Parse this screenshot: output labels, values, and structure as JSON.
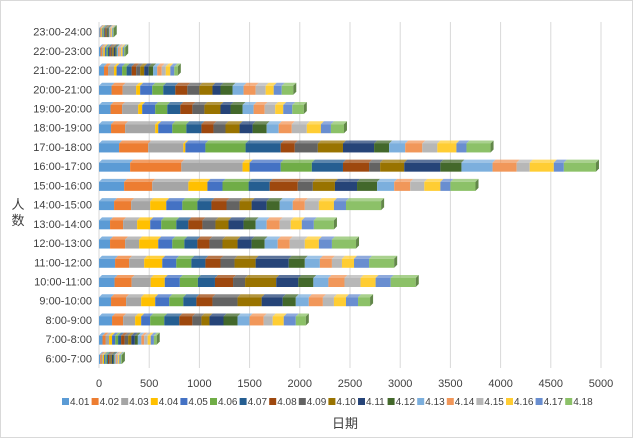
{
  "chart_data": {
    "type": "bar",
    "orientation": "horizontal",
    "stacked": true,
    "xlabel": "日期",
    "ylabel": "人数",
    "xlim": [
      0,
      5000
    ],
    "xticks": [
      0,
      500,
      1000,
      1500,
      2000,
      2500,
      3000,
      3500,
      4000,
      4500,
      5000
    ],
    "grid": "vertical",
    "legend_position": "bottom",
    "categories": [
      "6:00-7:00",
      "7:00-8:00",
      "8:00-9:00",
      "9:00-10:00",
      "10:00-11:00",
      "11:00-12:00",
      "12:00-13:00",
      "13:00-14:00",
      "14:00-15:00",
      "15:00-16:00",
      "16:00-17:00",
      "17:00-18:00",
      "18:00-19:00",
      "19:00-20:00",
      "20:00-21:00",
      "21:00-22:00",
      "22:00-23:00",
      "23:00-24:00"
    ],
    "series": [
      {
        "name": "4.01",
        "color": "#5b9bd5",
        "values": [
          13,
          35,
          130,
          120,
          155,
          160,
          110,
          110,
          150,
          250,
          310,
          200,
          120,
          115,
          125,
          50,
          15,
          8
        ]
      },
      {
        "name": "4.02",
        "color": "#ed7d31",
        "values": [
          12,
          30,
          110,
          150,
          170,
          140,
          150,
          130,
          170,
          280,
          510,
          290,
          140,
          115,
          110,
          40,
          14,
          8
        ]
      },
      {
        "name": "4.03",
        "color": "#a5a5a5",
        "values": [
          13,
          35,
          120,
          150,
          190,
          150,
          140,
          140,
          190,
          360,
          610,
          350,
          300,
          160,
          135,
          60,
          15,
          8
        ]
      },
      {
        "name": "4.04",
        "color": "#ffc000",
        "values": [
          12,
          30,
          60,
          140,
          140,
          180,
          190,
          130,
          160,
          190,
          70,
          20,
          30,
          40,
          40,
          25,
          14,
          9
        ]
      },
      {
        "name": "4.05",
        "color": "#4472c4",
        "values": [
          13,
          32,
          90,
          140,
          150,
          140,
          140,
          110,
          160,
          150,
          310,
          200,
          140,
          130,
          120,
          55,
          16,
          9
        ]
      },
      {
        "name": "4.06",
        "color": "#70ad47",
        "values": [
          14,
          28,
          140,
          140,
          180,
          150,
          120,
          150,
          150,
          260,
          310,
          400,
          140,
          120,
          110,
          45,
          15,
          8
        ]
      },
      {
        "name": "4.07",
        "color": "#255e91",
        "values": [
          12,
          30,
          150,
          130,
          170,
          140,
          130,
          120,
          140,
          210,
          310,
          350,
          150,
          130,
          120,
          50,
          15,
          8
        ]
      },
      {
        "name": "4.08",
        "color": "#9e480e",
        "values": [
          13,
          35,
          130,
          160,
          180,
          150,
          120,
          140,
          150,
          280,
          260,
          140,
          120,
          120,
          120,
          45,
          14,
          8
        ]
      },
      {
        "name": "4.09",
        "color": "#636363",
        "values": [
          14,
          35,
          90,
          250,
          120,
          140,
          130,
          130,
          130,
          150,
          110,
          230,
          120,
          120,
          120,
          40,
          15,
          8
        ]
      },
      {
        "name": "4.10",
        "color": "#997300",
        "values": [
          12,
          32,
          80,
          240,
          310,
          210,
          150,
          130,
          120,
          220,
          240,
          250,
          140,
          160,
          130,
          40,
          14,
          9
        ]
      },
      {
        "name": "4.11",
        "color": "#264478",
        "values": [
          13,
          35,
          140,
          210,
          220,
          330,
          140,
          150,
          150,
          220,
          360,
          310,
          130,
          100,
          80,
          45,
          15,
          8
        ]
      },
      {
        "name": "4.12",
        "color": "#43682b",
        "values": [
          12,
          30,
          140,
          130,
          150,
          160,
          130,
          120,
          130,
          200,
          210,
          150,
          140,
          120,
          120,
          45,
          14,
          8
        ]
      },
      {
        "name": "4.13",
        "color": "#7cafdd",
        "values": [
          13,
          35,
          120,
          130,
          150,
          150,
          130,
          110,
          130,
          170,
          310,
          160,
          120,
          110,
          110,
          40,
          15,
          8
        ]
      },
      {
        "name": "4.14",
        "color": "#f1975a",
        "values": [
          12,
          28,
          140,
          140,
          160,
          120,
          120,
          130,
          120,
          160,
          240,
          170,
          130,
          110,
          120,
          45,
          15,
          8
        ]
      },
      {
        "name": "4.15",
        "color": "#b7b7b7",
        "values": [
          13,
          35,
          90,
          110,
          160,
          100,
          150,
          110,
          140,
          140,
          130,
          150,
          150,
          105,
          100,
          40,
          14,
          8
        ]
      },
      {
        "name": "4.16",
        "color": "#ffcd33",
        "values": [
          12,
          30,
          110,
          120,
          150,
          120,
          140,
          110,
          150,
          160,
          240,
          190,
          140,
          80,
          80,
          45,
          15,
          8
        ]
      },
      {
        "name": "4.17",
        "color": "#698ed0",
        "values": [
          13,
          32,
          120,
          120,
          150,
          150,
          130,
          120,
          120,
          100,
          100,
          100,
          100,
          90,
          80,
          40,
          14,
          8
        ]
      },
      {
        "name": "4.18",
        "color": "#8cc168",
        "values": [
          12,
          28,
          100,
          120,
          250,
          250,
          240,
          200,
          350,
          250,
          320,
          240,
          130,
          115,
          115,
          35,
          12,
          8
        ]
      }
    ]
  }
}
